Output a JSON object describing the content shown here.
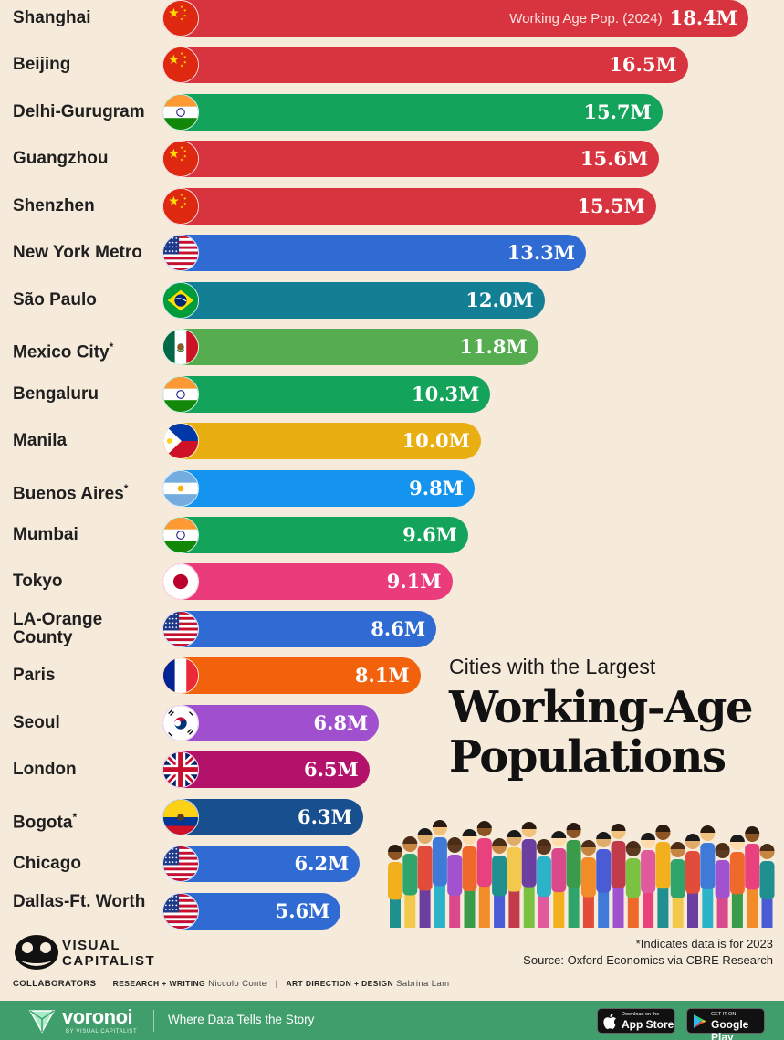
{
  "chart_data": {
    "type": "bar",
    "orientation": "horizontal",
    "title_line1": "Cities with the Largest",
    "title_line2": "Working-Age Populations",
    "series_note": "Working Age Pop. (2024)",
    "unit_suffix": "M",
    "categories": [
      "Shanghai",
      "Beijing",
      "Delhi-Gurugram",
      "Guangzhou",
      "Shenzhen",
      "New York Metro",
      "São Paulo",
      "Mexico City",
      "Bengaluru",
      "Manila",
      "Buenos Aires",
      "Mumbai",
      "Tokyo",
      "LA-Orange County",
      "Paris",
      "Seoul",
      "London",
      "Bogota",
      "Chicago",
      "Dallas-Ft. Worth"
    ],
    "values": [
      18.4,
      16.5,
      15.7,
      15.6,
      15.5,
      13.3,
      12.0,
      11.8,
      10.3,
      10.0,
      9.8,
      9.6,
      9.1,
      8.6,
      8.1,
      6.8,
      6.5,
      6.3,
      6.2,
      5.6
    ],
    "value_labels": [
      "18.4M",
      "16.5M",
      "15.7M",
      "15.6M",
      "15.5M",
      "13.3M",
      "12.0M",
      "11.8M",
      "10.3M",
      "10.0M",
      "9.8M",
      "9.6M",
      "9.1M",
      "8.6M",
      "8.1M",
      "6.8M",
      "6.5M",
      "6.3M",
      "6.2M",
      "5.6M"
    ],
    "asterisk": [
      false,
      false,
      false,
      false,
      false,
      false,
      false,
      true,
      false,
      false,
      true,
      false,
      false,
      false,
      false,
      false,
      false,
      true,
      false,
      false
    ],
    "countries": [
      "china",
      "china",
      "india",
      "china",
      "china",
      "usa",
      "brazil",
      "mexico",
      "india",
      "philippines",
      "argentina",
      "india",
      "japan",
      "usa",
      "france",
      "korea",
      "uk",
      "colombia",
      "usa",
      "usa"
    ],
    "colors": [
      "#d8343f",
      "#d8343f",
      "#13a35b",
      "#d8343f",
      "#d8343f",
      "#2f6bd3",
      "#137f95",
      "#55ad4f",
      "#13a35b",
      "#e8ae12",
      "#1494ef",
      "#13a35b",
      "#ea3b7a",
      "#2f6bd3",
      "#f2620d",
      "#a050cf",
      "#b3126a",
      "#184f8f",
      "#2f6bd3",
      "#2f6bd3"
    ],
    "xlim": [
      0,
      18.4
    ],
    "grid": false,
    "legend": "none"
  },
  "footnote": "*Indicates data is for 2023",
  "source": "Source: Oxford Economics via CBRE Research",
  "brand": {
    "line1": "VISUAL",
    "line2": "CAPITALIST"
  },
  "collaborators": {
    "heading": "COLLABORATORS",
    "research_label": "RESEARCH + WRITING",
    "research_name": "Niccolo Conte",
    "separator": "|",
    "design_label": "ART DIRECTION + DESIGN",
    "design_name": "Sabrina Lam"
  },
  "footer": {
    "name": "voronoi",
    "by": "BY VISUAL CAPITALIST",
    "tagline": "Where Data Tells the Story",
    "appstore_small": "Download on the",
    "appstore_big": "App Store",
    "google_small": "GET IT ON",
    "google_big": "Google Play",
    "accent": "#3f9e6b"
  },
  "icons": [
    "voronoi-logo-icon",
    "visual-capitalist-logo-icon",
    "apple-icon",
    "google-play-icon"
  ]
}
